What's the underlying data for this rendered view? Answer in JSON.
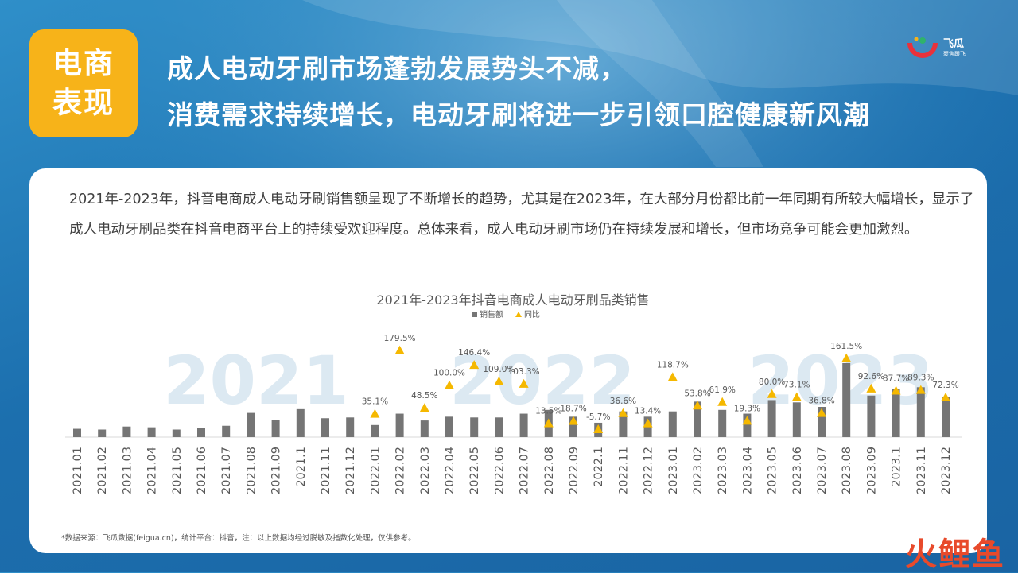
{
  "badge": {
    "line1": "电商",
    "line2": "表现"
  },
  "headline": {
    "line1": "成人电动牙刷市场蓬勃发展势头不减，",
    "line2": "消费需求持续增长，电动牙刷将进一步引领口腔健康新风潮"
  },
  "logo": {
    "name": "飞瓜",
    "tagline": "聚焦跟飞"
  },
  "paragraph": "2021年-2023年，抖音电商成人电动牙刷销售额呈现了不断增长的趋势，尤其是在2023年，在大部分月份都比前一年同期有所较大幅增长，显示了成人电动牙刷品类在抖音电商平台上的持续受欢迎程度。总体来看，成人电动牙刷市场仍在持续发展和增长，但市场竞争可能会更加激烈。",
  "footnote": "*数据来源：飞瓜数据(feigua.cn)，统计平台：抖音，注：以上数据均经过脱敏及指数化处理，仅供参考。",
  "watermark": "火鲤鱼",
  "colors": {
    "bar": "#757575",
    "marker": "#f5b800",
    "badge": "#f7b319",
    "year_watermark": "#dce9f2"
  },
  "chart_data": {
    "type": "bar",
    "title": "2021年-2023年抖音电商成人电动牙刷品类销售",
    "legend": [
      "销售额",
      "同比"
    ],
    "legend_position": "top-center",
    "year_labels": [
      "2021",
      "2022",
      "2023"
    ],
    "categories": [
      "2021.01",
      "2021.02",
      "2021.03",
      "2021.04",
      "2021.05",
      "2021.06",
      "2021.07",
      "2021.08",
      "2021.09",
      "2021.1",
      "2021.11",
      "2021.12",
      "2022.01",
      "2022.02",
      "2022.03",
      "2022.04",
      "2022.05",
      "2022.06",
      "2022.07",
      "2022.08",
      "2022.09",
      "2022.1",
      "2022.11",
      "2022.12",
      "2023.01",
      "2023.02",
      "2023.03",
      "2023.04",
      "2023.05",
      "2023.06",
      "2023.07",
      "2023.08",
      "2023.09",
      "2023.1",
      "2023.11",
      "2023.12"
    ],
    "series": [
      {
        "name": "销售额",
        "values": [
          11,
          10,
          14,
          13,
          10,
          12,
          15,
          32,
          23,
          37,
          25,
          26,
          16,
          31,
          22,
          27,
          26,
          26,
          31,
          36,
          27,
          19,
          34,
          27,
          34,
          47,
          36,
          31,
          49,
          46,
          40,
          98,
          55,
          64,
          66,
          53
        ]
      },
      {
        "name": "同比",
        "labels": [
          "",
          "",
          "",
          "",
          "",
          "",
          "",
          "",
          "",
          "",
          "",
          "",
          "35.1%",
          "179.5%",
          "48.5%",
          "100.0%",
          "146.4%",
          "109.0%",
          "103.3%",
          "13.5%",
          "18.7%",
          "-5.7%",
          "36.6%",
          "13.4%",
          "118.7%",
          "53.8%",
          "61.9%",
          "19.3%",
          "80.0%",
          "73.1%",
          "36.8%",
          "161.5%",
          "92.6%",
          "87.7%",
          "89.3%",
          "72.3%"
        ],
        "values": [
          null,
          null,
          null,
          null,
          null,
          null,
          null,
          null,
          null,
          null,
          null,
          null,
          35.1,
          179.5,
          48.5,
          100.0,
          146.4,
          109.0,
          103.3,
          13.5,
          18.7,
          -5.7,
          36.6,
          13.4,
          118.7,
          53.8,
          61.9,
          19.3,
          80.0,
          73.1,
          36.8,
          161.5,
          92.6,
          87.7,
          89.3,
          72.3
        ]
      }
    ],
    "grid": false
  }
}
